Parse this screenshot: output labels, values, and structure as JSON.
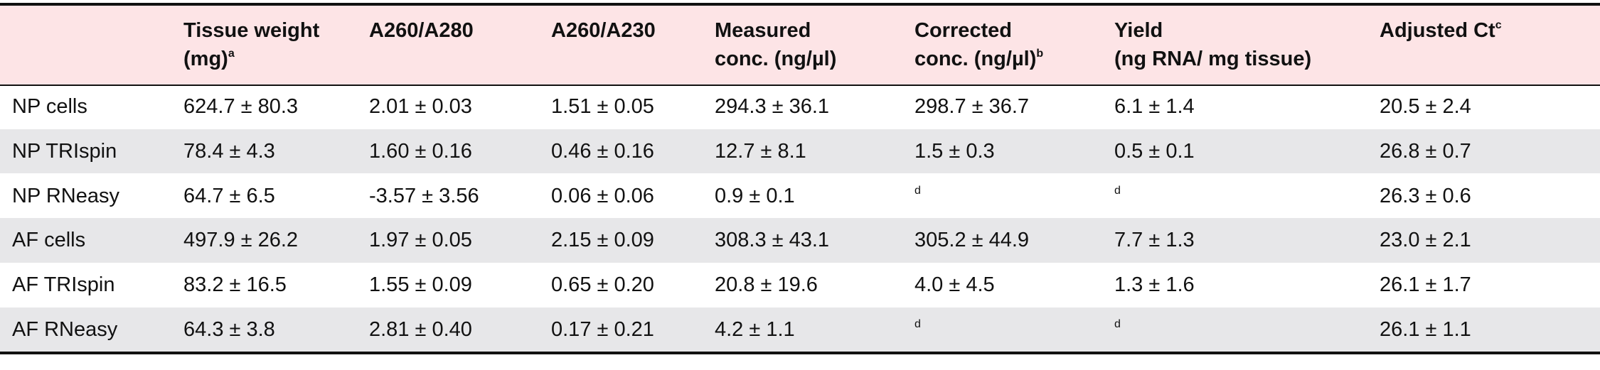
{
  "table": {
    "header": [
      {
        "lines": [
          "Tissue weight",
          "(mg)"
        ],
        "sup": "a"
      },
      {
        "lines": [
          "A260/A280"
        ]
      },
      {
        "lines": [
          "A260/A230"
        ]
      },
      {
        "lines": [
          "Measured",
          "conc. (ng/µl)"
        ]
      },
      {
        "lines": [
          "Corrected",
          "conc. (ng/µl)"
        ],
        "sup": "b"
      },
      {
        "lines": [
          "Yield",
          "(ng RNA/ mg tissue)"
        ]
      },
      {
        "lines": [
          "Adjusted Ct"
        ],
        "sup": "c"
      }
    ],
    "rows": [
      [
        "NP cells",
        "624.7 ± 80.3",
        "2.01 ± 0.03",
        "1.51 ± 0.05",
        "294.3 ± 36.1",
        "298.7 ± 36.7",
        "6.1 ± 1.4",
        "20.5 ± 2.4"
      ],
      [
        "NP TRIspin",
        "78.4 ± 4.3",
        "1.60 ± 0.16",
        "0.46 ± 0.16",
        "12.7 ± 8.1",
        "1.5 ± 0.3",
        "0.5 ± 0.1",
        "26.8 ± 0.7"
      ],
      [
        "NP RNeasy",
        "64.7 ± 6.5",
        "-3.57 ± 3.56",
        "0.06 ± 0.06",
        "0.9 ± 0.1",
        {
          "sup": "d"
        },
        {
          "sup": "d"
        },
        "26.3 ± 0.6"
      ],
      [
        "AF cells",
        "497.9 ± 26.2",
        "1.97 ± 0.05",
        "2.15 ± 0.09",
        "308.3 ± 43.1",
        "305.2 ± 44.9",
        "7.7 ± 1.3",
        "23.0 ± 2.1"
      ],
      [
        "AF TRIspin",
        "83.2 ± 16.5",
        "1.55 ± 0.09",
        "0.65 ± 0.20",
        "20.8 ± 19.6",
        "4.0 ± 4.5",
        "1.3 ± 1.6",
        "26.1 ± 1.7"
      ],
      [
        "AF RNeasy",
        "64.3 ± 3.8",
        "2.81 ± 0.40",
        "0.17 ± 0.21",
        "4.2 ± 1.1",
        {
          "sup": "d"
        },
        {
          "sup": "d"
        },
        "26.1 ± 1.1"
      ]
    ]
  }
}
